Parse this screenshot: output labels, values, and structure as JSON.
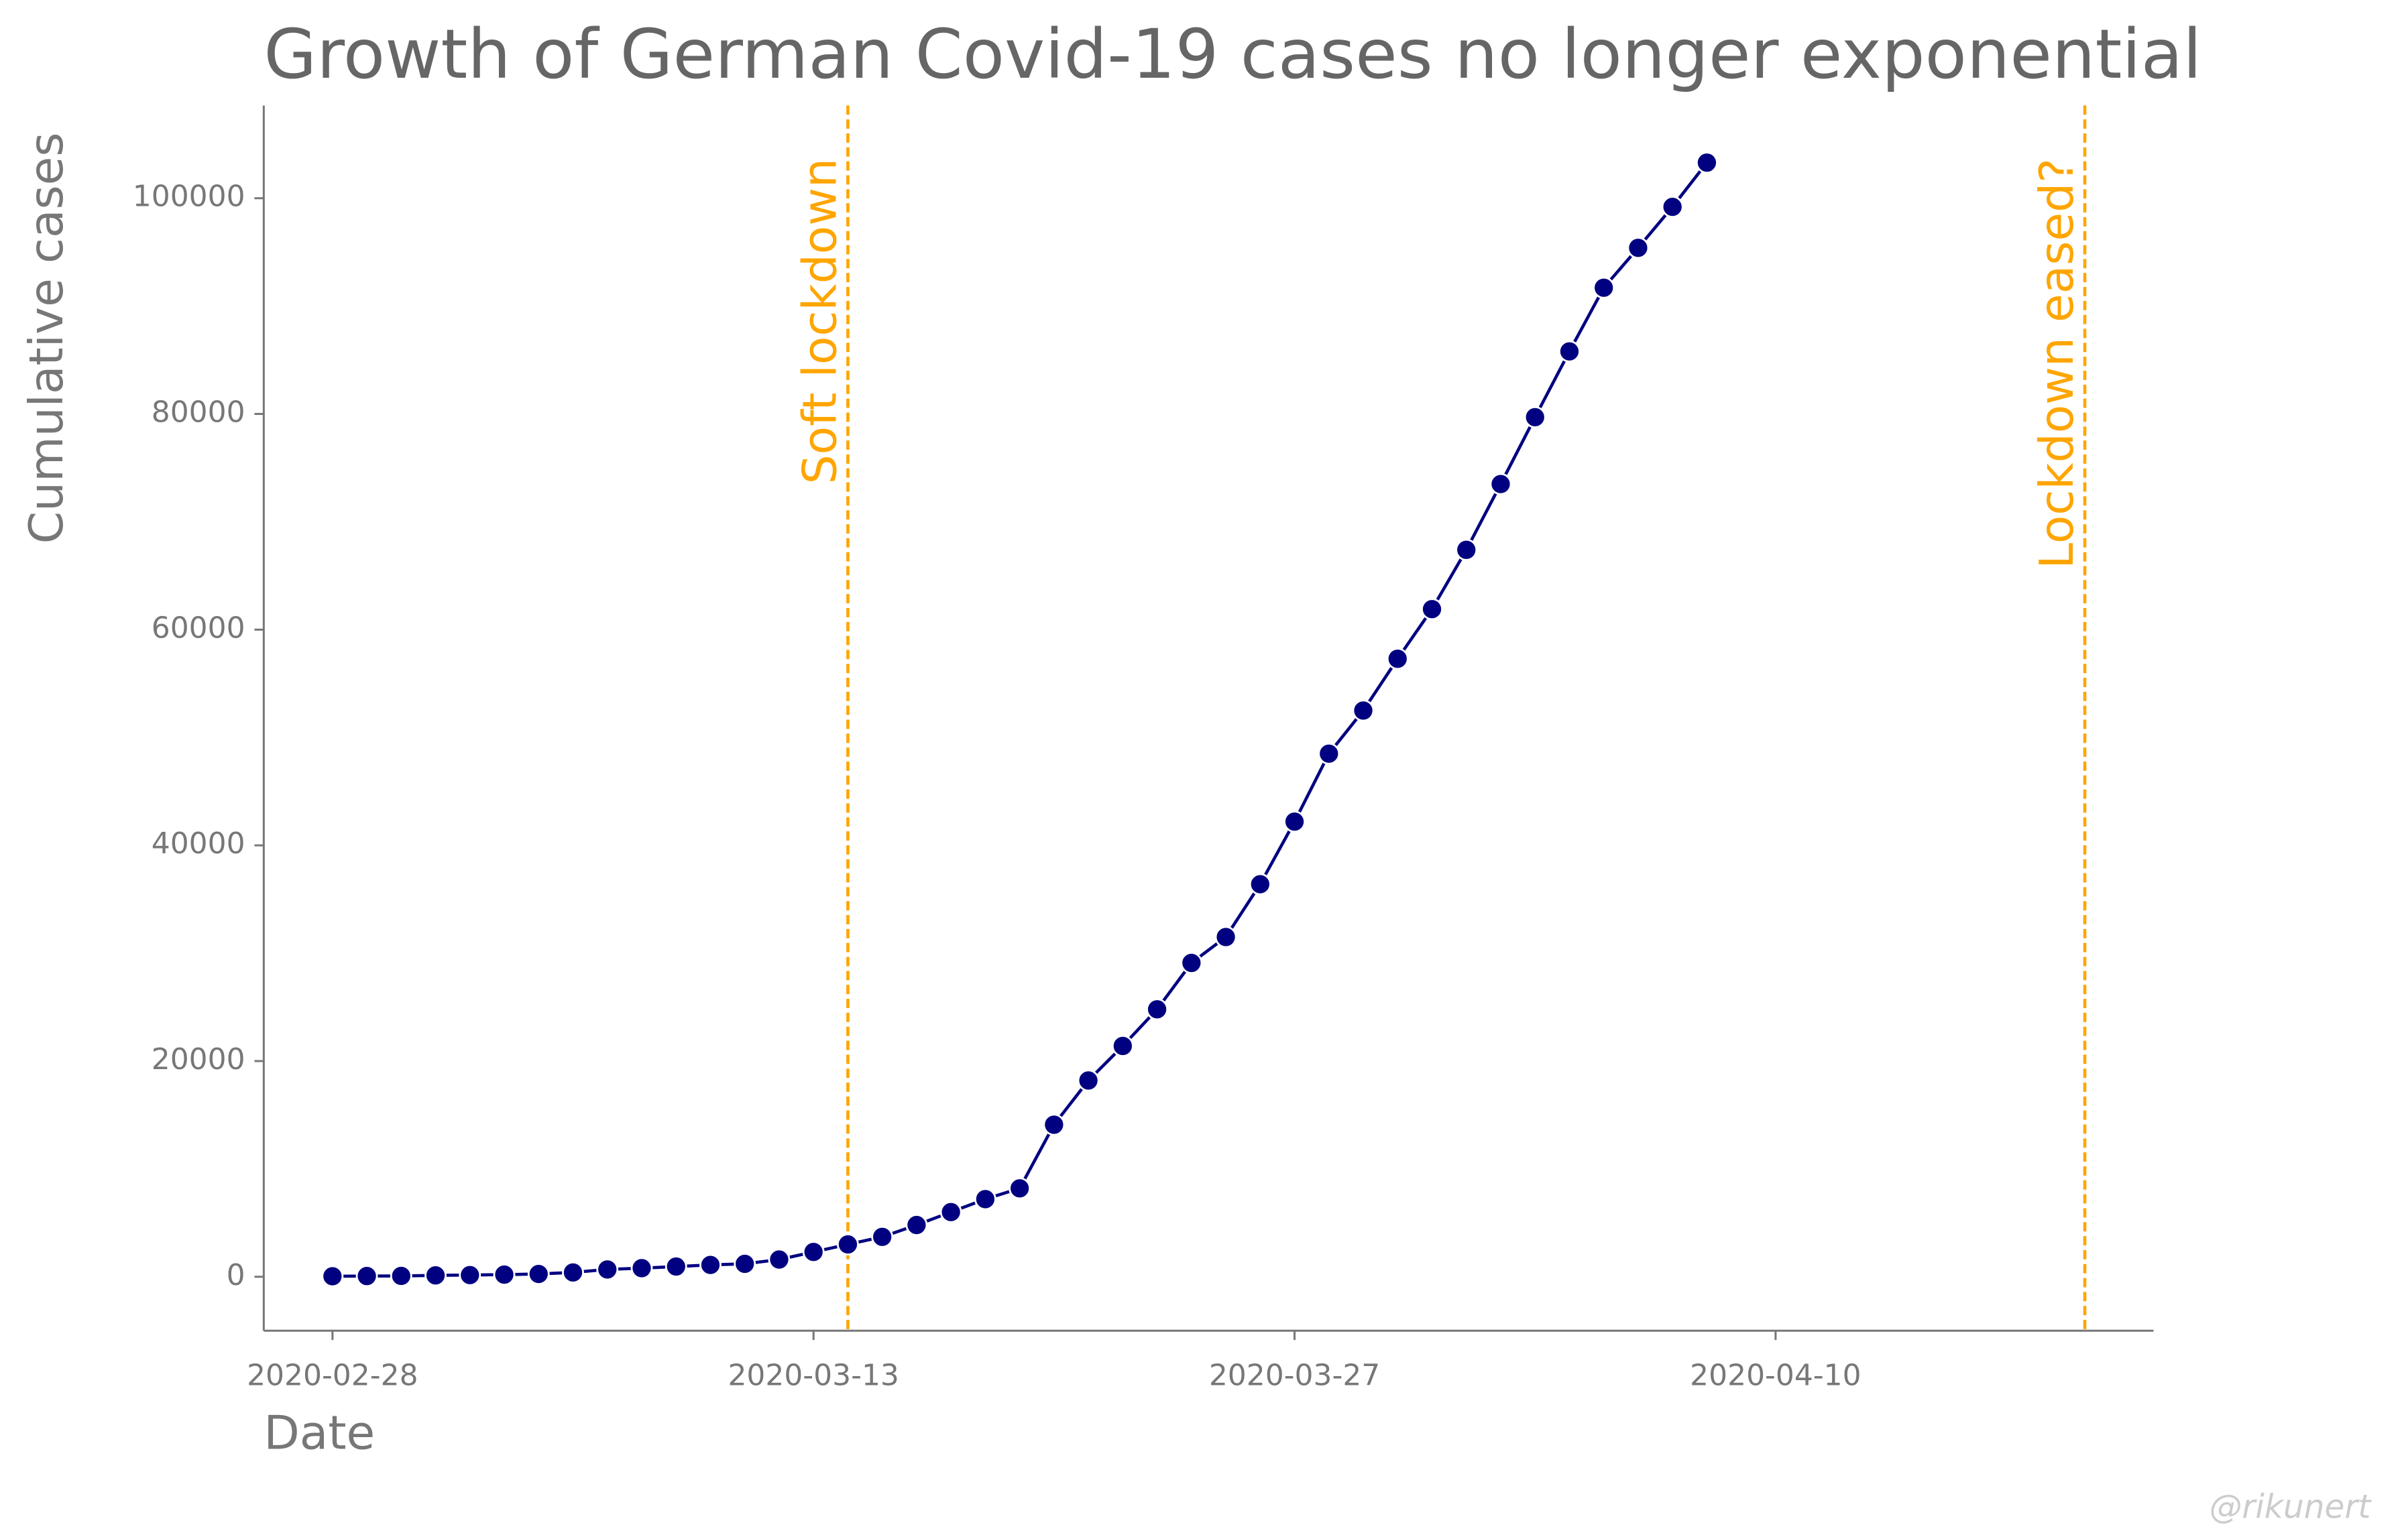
{
  "chart_data": {
    "type": "line",
    "title": "Growth of German Covid-19 cases no longer exponential",
    "x_label": "Date",
    "y_label": "Cumulative cases",
    "watermark": "@rikunert",
    "x": [
      "2020-02-28",
      "2020-02-29",
      "2020-03-01",
      "2020-03-02",
      "2020-03-03",
      "2020-03-04",
      "2020-03-05",
      "2020-03-06",
      "2020-03-07",
      "2020-03-08",
      "2020-03-09",
      "2020-03-10",
      "2020-03-11",
      "2020-03-12",
      "2020-03-13",
      "2020-03-14",
      "2020-03-15",
      "2020-03-16",
      "2020-03-17",
      "2020-03-18",
      "2020-03-19",
      "2020-03-20",
      "2020-03-21",
      "2020-03-22",
      "2020-03-23",
      "2020-03-24",
      "2020-03-25",
      "2020-03-26",
      "2020-03-27",
      "2020-03-28",
      "2020-03-29",
      "2020-03-30",
      "2020-03-31",
      "2020-04-01",
      "2020-04-02",
      "2020-04-03",
      "2020-04-04",
      "2020-04-05",
      "2020-04-06",
      "2020-04-07",
      "2020-04-08"
    ],
    "series": [
      {
        "name": "Cumulative cases",
        "color": "#000080",
        "values": [
          50,
          70,
          80,
          130,
          160,
          200,
          260,
          400,
          680,
          800,
          950,
          1100,
          1200,
          1600,
          2300,
          3000,
          3700,
          4800,
          6000,
          7200,
          8200,
          14100,
          18200,
          21400,
          24800,
          29100,
          31500,
          36400,
          42200,
          48500,
          52500,
          57300,
          61900,
          67400,
          73500,
          79700,
          85800,
          91700,
          95400,
          99200,
          103300
        ]
      }
    ],
    "xlim": [
      "2020-02-26",
      "2020-04-21"
    ],
    "xticks": [
      "2020-02-28",
      "2020-03-13",
      "2020-03-27",
      "2020-04-10"
    ],
    "ylim": [
      -5000,
      108600
    ],
    "yticks": [
      0,
      20000,
      40000,
      60000,
      80000,
      100000
    ],
    "annotations": [
      {
        "x": "2020-03-14",
        "label": "Soft lockdown",
        "color": "#ffa500"
      },
      {
        "x": "2020-04-19",
        "label": "Lockdown eased?",
        "color": "#ffa500"
      }
    ]
  }
}
